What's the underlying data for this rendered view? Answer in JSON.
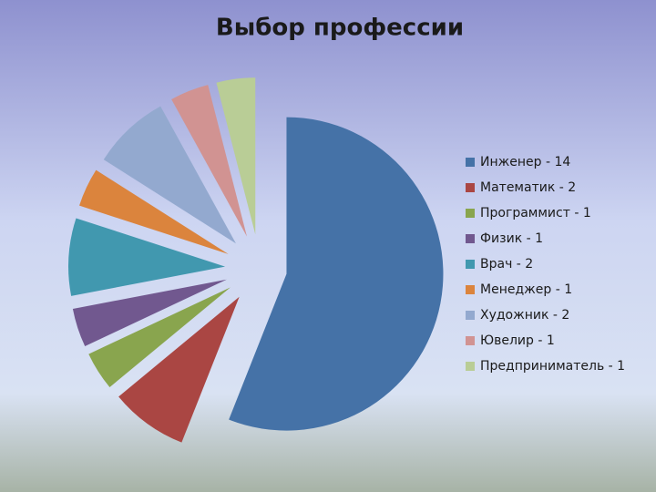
{
  "chart_data": {
    "type": "pie",
    "title": "Выбор профессии",
    "categories": [
      "Инженер - 14",
      "Математик - 2",
      "Программист - 1",
      "Физик - 1",
      "Врач - 2",
      "Менеджер - 1",
      "Художник - 2",
      "Ювелир - 1",
      "Предприниматель - 1"
    ],
    "values": [
      14,
      2,
      1,
      1,
      2,
      1,
      2,
      1,
      1
    ],
    "colors": [
      "#4572a7",
      "#aa4643",
      "#89a54e",
      "#71588f",
      "#4198af",
      "#db843d",
      "#93a9cf",
      "#d19392",
      "#b9cd96"
    ],
    "legend": "right"
  }
}
